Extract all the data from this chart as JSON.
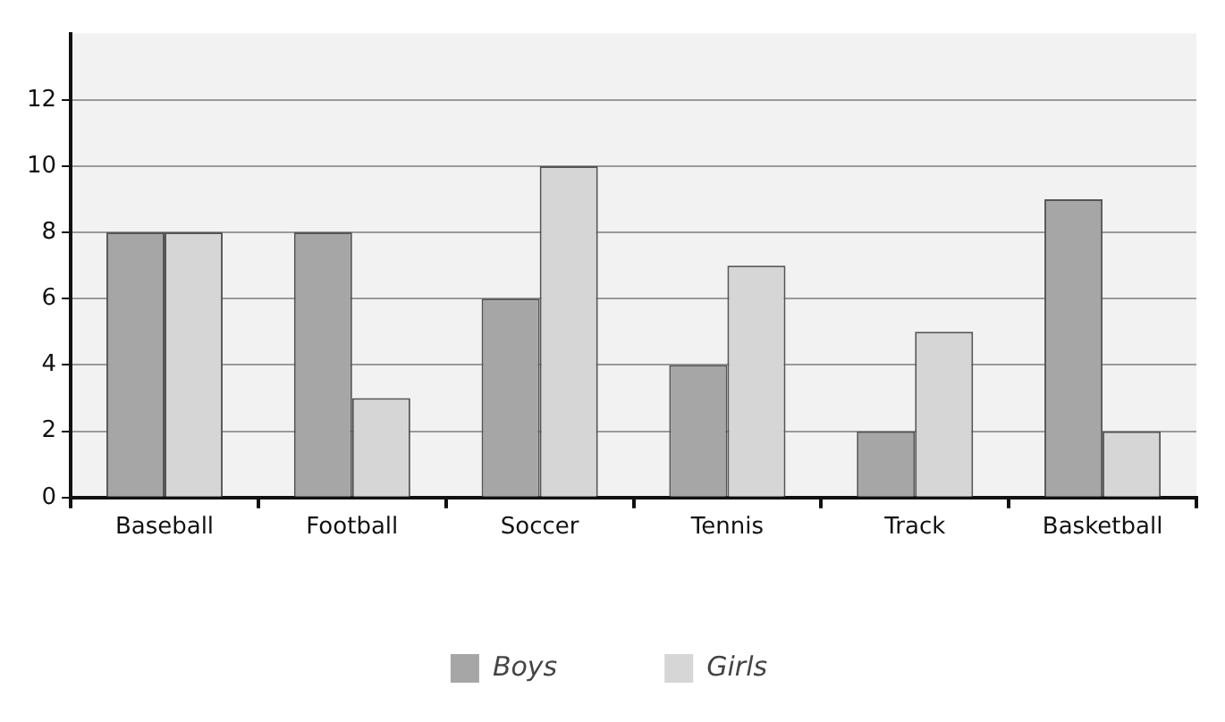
{
  "chart_data": {
    "type": "bar",
    "categories": [
      "Baseball",
      "Football",
      "Soccer",
      "Tennis",
      "Track",
      "Basketball"
    ],
    "series": [
      {
        "name": "Boys",
        "color": "#a6a6a6",
        "values": [
          8,
          8,
          6,
          4,
          2,
          9
        ]
      },
      {
        "name": "Girls",
        "color": "#d6d6d6",
        "values": [
          8,
          3,
          10,
          7,
          5,
          2
        ]
      }
    ],
    "ylim": [
      0,
      14
    ],
    "yticks": [
      0,
      2,
      4,
      6,
      8,
      10,
      12
    ],
    "grid": "y",
    "legend": "bottom"
  }
}
